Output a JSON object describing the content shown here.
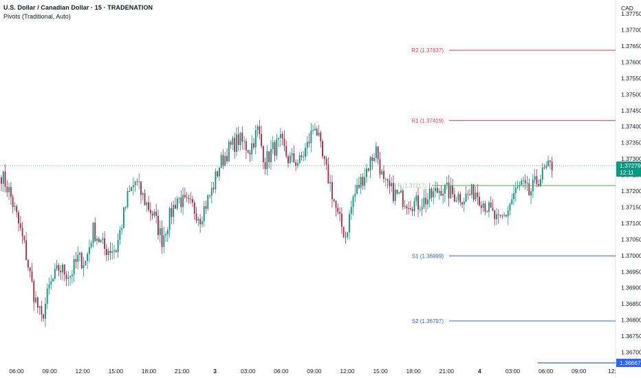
{
  "header": {
    "title": "U.S. Dollar / Canadian Dollar · 15 · TRADENATION",
    "subtitle": "Pivots (Traditional, Auto)"
  },
  "chart_data": {
    "type": "candlestick",
    "currency": "CAD",
    "ylim": [
      1.3665,
      1.3778
    ],
    "y_ticks": [
      "1.37750",
      "1.37700",
      "1.37650",
      "1.37600",
      "1.37550",
      "1.37500",
      "1.37450",
      "1.37400",
      "1.37350",
      "1.37300",
      "1.37250",
      "1.37200",
      "1.37150",
      "1.37100",
      "1.37050",
      "1.37000",
      "1.36950",
      "1.36900",
      "1.36850",
      "1.36800",
      "1.36750",
      "1.36700"
    ],
    "x_ticks": [
      "06:00",
      "09:00",
      "12:00",
      "15:00",
      "18:00",
      "21:00",
      "3",
      "03:00",
      "06:00",
      "09:00",
      "12:00",
      "15:00",
      "18:00",
      "21:00",
      "4",
      "03:00",
      "06:00",
      "09:00",
      "12:"
    ],
    "pivots": [
      {
        "name": "R2",
        "label": "R2 (1.37637)",
        "value": 1.37637,
        "color": "#f23645"
      },
      {
        "name": "R1",
        "label": "R1 (1.37419)",
        "value": 1.37419,
        "color": "#f23645"
      },
      {
        "name": "P",
        "label": "P (1.37217)",
        "value": 1.37217,
        "color": "#4caf50"
      },
      {
        "name": "S1",
        "label": "S1 (1.36999)",
        "value": 1.36999,
        "color": "#2962ff"
      },
      {
        "name": "S2",
        "label": "S2 (1.36797)",
        "value": 1.36797,
        "color": "#2962ff"
      }
    ],
    "last_price": {
      "value": "1.37279",
      "countdown": "12:11",
      "color": "#089981"
    },
    "low_marker": {
      "value": "1.36667",
      "color": "#2962ff"
    },
    "colors": {
      "up": "#089981",
      "down": "#b2294a"
    },
    "keyframes": [
      [
        0,
        1.3725
      ],
      [
        4,
        1.372
      ],
      [
        8,
        1.3712
      ],
      [
        12,
        1.3703
      ],
      [
        17,
        1.3688
      ],
      [
        21,
        1.368
      ],
      [
        25,
        1.369
      ],
      [
        30,
        1.3696
      ],
      [
        36,
        1.3694
      ],
      [
        40,
        1.3699
      ],
      [
        44,
        1.3698
      ],
      [
        48,
        1.3708
      ],
      [
        54,
        1.3702
      ],
      [
        60,
        1.3702
      ],
      [
        66,
        1.3718
      ],
      [
        70,
        1.3723
      ],
      [
        75,
        1.3717
      ],
      [
        80,
        1.3712
      ],
      [
        84,
        1.3705
      ],
      [
        88,
        1.3712
      ],
      [
        92,
        1.3718
      ],
      [
        96,
        1.3716
      ],
      [
        100,
        1.3715
      ],
      [
        104,
        1.3712
      ],
      [
        110,
        1.372
      ],
      [
        114,
        1.3728
      ],
      [
        119,
        1.3733
      ],
      [
        124,
        1.3736
      ],
      [
        130,
        1.3733
      ],
      [
        134,
        1.3739
      ],
      [
        138,
        1.3729
      ],
      [
        142,
        1.3733
      ],
      [
        146,
        1.3735
      ],
      [
        150,
        1.373
      ],
      [
        156,
        1.3729
      ],
      [
        160,
        1.3734
      ],
      [
        164,
        1.3741
      ],
      [
        168,
        1.373
      ],
      [
        172,
        1.3722
      ],
      [
        176,
        1.3712
      ],
      [
        180,
        1.3706
      ],
      [
        184,
        1.3718
      ],
      [
        188,
        1.3723
      ],
      [
        192,
        1.3728
      ],
      [
        196,
        1.3733
      ],
      [
        200,
        1.3722
      ],
      [
        206,
        1.3719
      ],
      [
        212,
        1.3717
      ],
      [
        218,
        1.3716
      ],
      [
        224,
        1.3718
      ],
      [
        230,
        1.3721
      ],
      [
        236,
        1.3719
      ],
      [
        242,
        1.3718
      ],
      [
        248,
        1.372
      ],
      [
        254,
        1.3715
      ],
      [
        260,
        1.371
      ],
      [
        264,
        1.3713
      ],
      [
        268,
        1.3719
      ],
      [
        272,
        1.3722
      ],
      [
        276,
        1.3719
      ],
      [
        280,
        1.3723
      ],
      [
        284,
        1.3726
      ],
      [
        288,
        1.3728
      ]
    ]
  }
}
